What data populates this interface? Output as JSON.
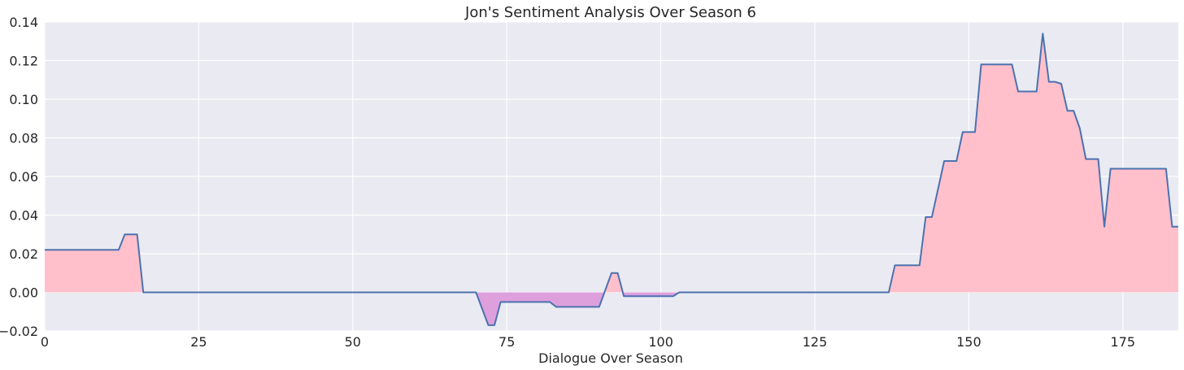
{
  "chart_data": {
    "type": "area",
    "title": "Jon's Sentiment Analysis Over Season 6",
    "xlabel": "Dialogue Over Season",
    "ylabel": "",
    "xlim": [
      0,
      184
    ],
    "ylim": [
      -0.02,
      0.14
    ],
    "x_ticks": [
      "0",
      "25",
      "50",
      "75",
      "100",
      "125",
      "150",
      "175"
    ],
    "x_tick_values": [
      0,
      25,
      50,
      75,
      100,
      125,
      150,
      175
    ],
    "y_ticks": [
      "−0.02",
      "0.00",
      "0.02",
      "0.04",
      "0.06",
      "0.08",
      "0.10",
      "0.12",
      "0.14"
    ],
    "y_tick_values": [
      -0.02,
      0.0,
      0.02,
      0.04,
      0.06,
      0.08,
      0.1,
      0.12,
      0.14
    ],
    "grid": true,
    "colors": {
      "background": "#eaeaf2",
      "grid": "#ffffff",
      "line": "#4c72b0",
      "positive_fill": "#ffc0cb",
      "negative_fill": "#dda0dd"
    },
    "series": [
      {
        "x": [
          0,
          12,
          13,
          15,
          16,
          70,
          72,
          73,
          74,
          82,
          83,
          90,
          92,
          93,
          94,
          101,
          102,
          103,
          137,
          138,
          142,
          143,
          144,
          146,
          148,
          149,
          151,
          152,
          157,
          158,
          161,
          162,
          163,
          164,
          165,
          166,
          167,
          168,
          169,
          171,
          172,
          173,
          174,
          182,
          183,
          184
        ],
        "y": [
          0.022,
          0.022,
          0.03,
          0.03,
          0.0,
          0.0,
          -0.017,
          -0.017,
          -0.005,
          -0.005,
          -0.0075,
          -0.0075,
          0.01,
          0.01,
          -0.002,
          -0.002,
          -0.002,
          0.0,
          0.0,
          0.014,
          0.014,
          0.039,
          0.039,
          0.068,
          0.068,
          0.083,
          0.083,
          0.118,
          0.118,
          0.104,
          0.104,
          0.134,
          0.109,
          0.109,
          0.108,
          0.094,
          0.094,
          0.085,
          0.069,
          0.069,
          0.034,
          0.064,
          0.064,
          0.064,
          0.034,
          0.034
        ]
      }
    ]
  }
}
